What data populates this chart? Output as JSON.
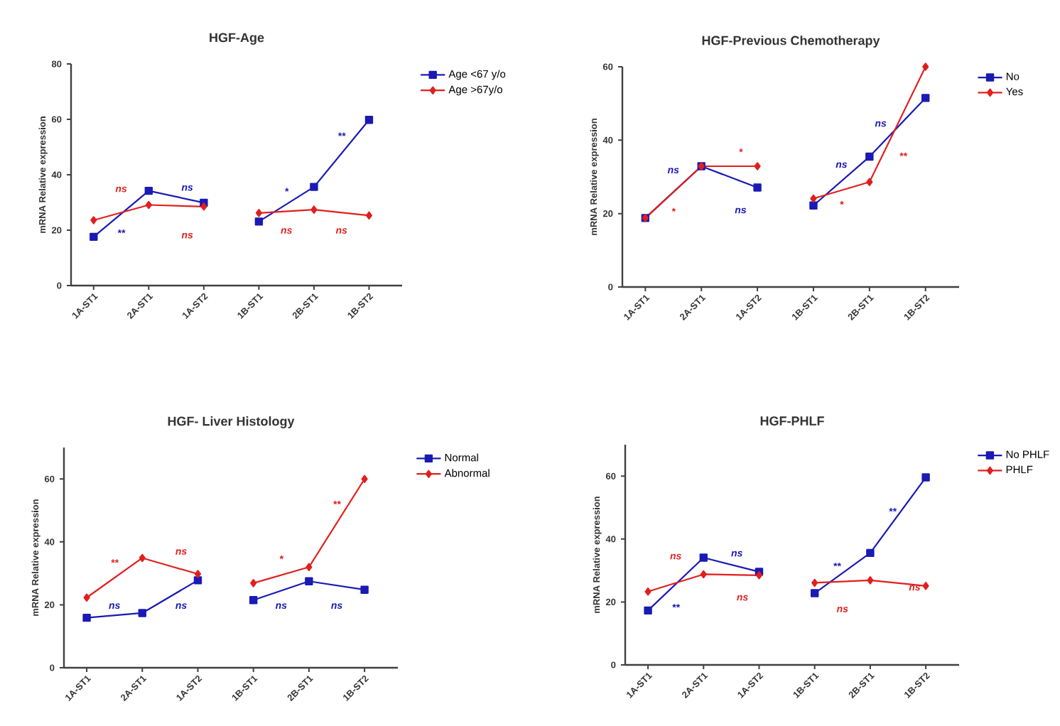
{
  "chart_data": [
    {
      "type": "line",
      "title": "HGF-Age",
      "ylabel": "mRNA Relative expression",
      "categories": [
        "1A-ST1",
        "2A-ST1",
        "1A-ST2",
        "1B-ST1",
        "2B-ST1",
        "1B-ST2"
      ],
      "ylim": [
        0,
        80
      ],
      "yticks": [
        0,
        20,
        40,
        60,
        80
      ],
      "legend": "top right",
      "series": [
        {
          "name": "Age <67 y/o",
          "color": "#1a1ab4",
          "marker": "square",
          "values": [
            17.6,
            34.2,
            29.9,
            null,
            null,
            null
          ]
        },
        {
          "color": "#1a1ab4",
          "marker": "square",
          "values": [
            null,
            null,
            null,
            23.1,
            35.6,
            59.8
          ]
        },
        {
          "name": "Age >67y/o",
          "color": "#e0201e",
          "marker": "diamond",
          "values": [
            23.6,
            29.1,
            28.5,
            null,
            null,
            null
          ]
        },
        {
          "color": "#e0201e",
          "marker": "diamond",
          "values": [
            null,
            null,
            null,
            26.2,
            27.4,
            25.3
          ]
        }
      ],
      "annotations": [
        "ns",
        "**",
        "ns",
        "ns",
        "*",
        "ns",
        "**",
        "ns"
      ]
    },
    {
      "type": "line",
      "title": "HGF-Previous  Chemotherapy",
      "ylabel": "mRNA Relative expression",
      "categories": [
        "1A-ST1",
        "2A-ST1",
        "1A-ST2",
        "1B-ST1",
        "2B-ST1",
        "1B-ST2"
      ],
      "ylim": [
        0,
        60
      ],
      "yticks": [
        0,
        20,
        40,
        60
      ],
      "legend": "top right",
      "series": [
        {
          "name": "No",
          "color": "#1a1ab4",
          "marker": "square",
          "values": [
            18.8,
            32.9,
            27.1,
            null,
            null,
            null
          ]
        },
        {
          "color": "#1a1ab4",
          "marker": "square",
          "values": [
            null,
            null,
            null,
            22.2,
            35.5,
            51.5
          ]
        },
        {
          "name": "Yes",
          "color": "#e0201e",
          "marker": "diamond",
          "values": [
            18.8,
            32.9,
            32.9,
            null,
            null,
            null
          ]
        },
        {
          "color": "#e0201e",
          "marker": "diamond",
          "values": [
            null,
            null,
            null,
            24.1,
            28.6,
            60
          ]
        }
      ],
      "annotations": [
        "*",
        "ns",
        "*",
        "ns",
        "*",
        "ns",
        "ns",
        "**"
      ]
    },
    {
      "type": "line",
      "title": "HGF- Liver  Histology",
      "ylabel": "mRNA Relative expression",
      "categories": [
        "1A-ST1",
        "2A-ST1",
        "1A-ST2",
        "1B-ST1",
        "2B-ST1",
        "1B-ST2"
      ],
      "ylim": [
        0,
        70
      ],
      "yticks": [
        0,
        20,
        40,
        60
      ],
      "legend": "top right",
      "series": [
        {
          "name": "Normal",
          "color": "#1a1ab4",
          "marker": "square",
          "values": [
            15.9,
            17.4,
            27.8,
            null,
            null,
            null
          ]
        },
        {
          "color": "#1a1ab4",
          "marker": "square",
          "values": [
            null,
            null,
            null,
            21.5,
            27.5,
            24.8
          ]
        },
        {
          "name": "Abnormal",
          "color": "#e0201e",
          "marker": "diamond",
          "values": [
            22.3,
            34.9,
            29.8,
            null,
            null,
            null
          ]
        },
        {
          "color": "#e0201e",
          "marker": "diamond",
          "values": [
            null,
            null,
            null,
            26.9,
            32,
            60
          ]
        }
      ],
      "annotations": [
        "**",
        "ns",
        "ns",
        "ns",
        "*",
        "ns",
        "ns",
        "**"
      ]
    },
    {
      "type": "line",
      "title": "HGF-PHLF",
      "ylabel": "mRNA Relative expression",
      "categories": [
        "1A-ST1",
        "2A-ST1",
        "1A-ST2",
        "1B-ST1",
        "2B-ST1",
        "1B-ST2"
      ],
      "ylim": [
        0,
        70
      ],
      "yticks": [
        0,
        20,
        40,
        60
      ],
      "legend": "top right",
      "series": [
        {
          "name": "No PHLF",
          "color": "#1a1ab4",
          "marker": "square",
          "values": [
            17.3,
            34.1,
            29.6,
            null,
            null,
            null
          ]
        },
        {
          "color": "#1a1ab4",
          "marker": "square",
          "values": [
            null,
            null,
            null,
            22.8,
            35.6,
            59.6
          ]
        },
        {
          "name": "PHLF",
          "color": "#e0201e",
          "marker": "diamond",
          "values": [
            23.3,
            28.8,
            28.5,
            null,
            null,
            null
          ]
        },
        {
          "color": "#e0201e",
          "marker": "diamond",
          "values": [
            null,
            null,
            null,
            26.1,
            26.9,
            25.1
          ]
        }
      ],
      "annotations": [
        "ns",
        "**",
        "ns",
        "ns",
        "**",
        "ns",
        "**",
        "ns"
      ]
    }
  ]
}
